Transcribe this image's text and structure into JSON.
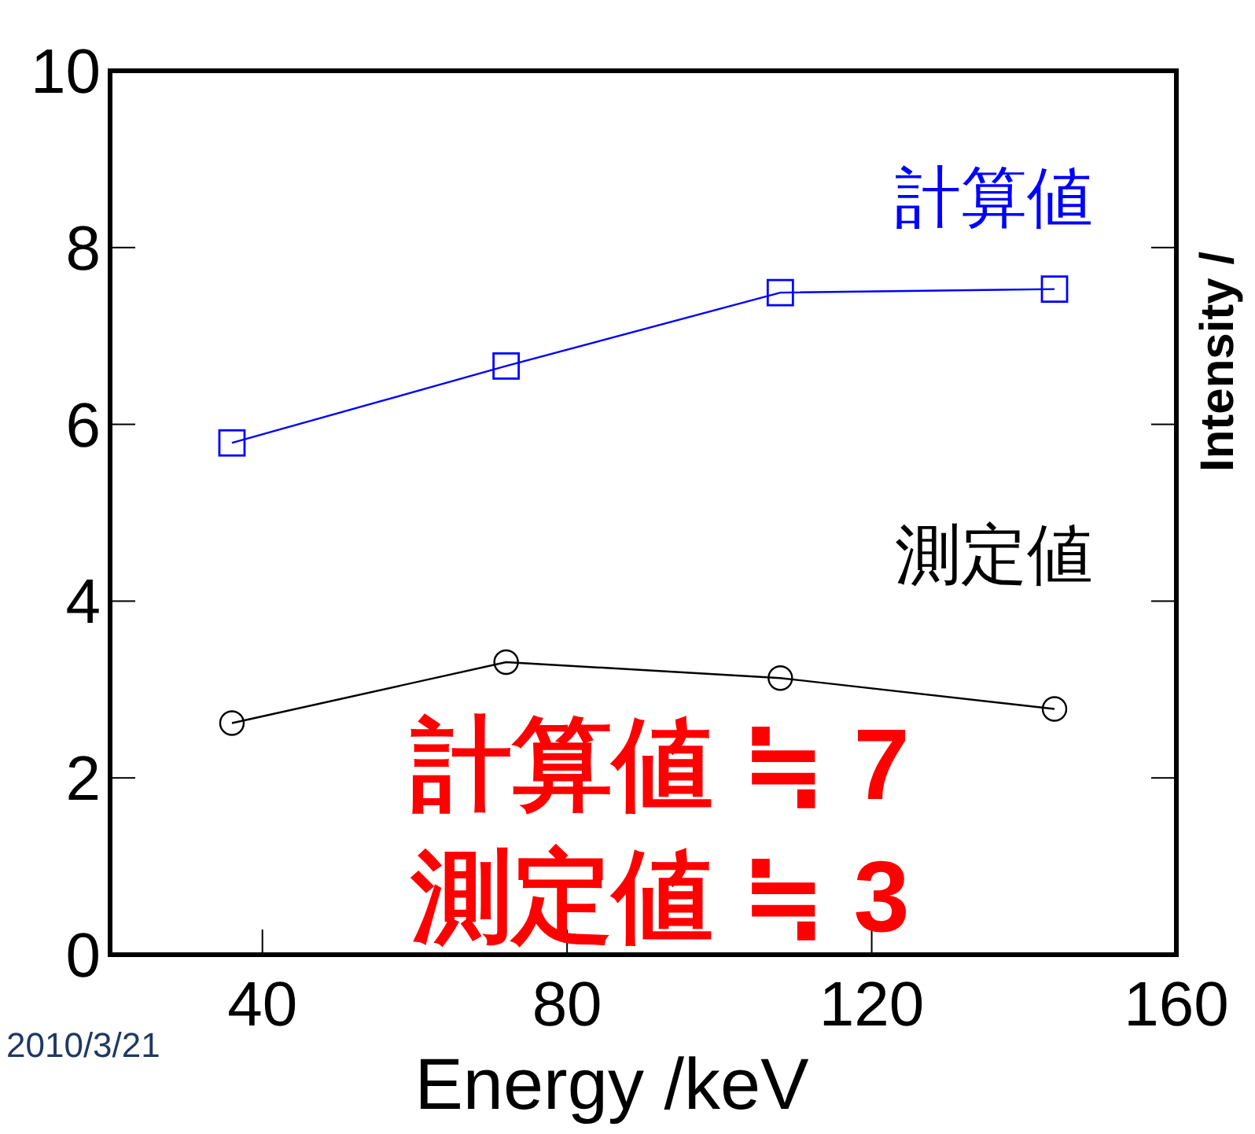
{
  "chart_data": {
    "type": "line",
    "xlabel": "Energy /keV",
    "x": [
      36,
      72,
      108,
      144
    ],
    "xlim": [
      20,
      160
    ],
    "ylim": [
      0,
      10
    ],
    "xticks": [
      40,
      80,
      120,
      160
    ],
    "yticks": [
      0,
      2,
      4,
      6,
      8,
      10
    ],
    "grid": false,
    "legend": false,
    "series": [
      {
        "name": "計算値",
        "color": "#0000ff",
        "marker": "square",
        "values": [
          5.79,
          6.66,
          7.49,
          7.53
        ]
      },
      {
        "name": "測定値",
        "color": "#000000",
        "marker": "circle",
        "values": [
          2.62,
          3.31,
          3.13,
          2.78
        ]
      }
    ],
    "annotations": [
      "計算値 ≒ 7",
      "測定値 ≒ 3",
      "2010/3/21",
      "Intensity /"
    ]
  }
}
